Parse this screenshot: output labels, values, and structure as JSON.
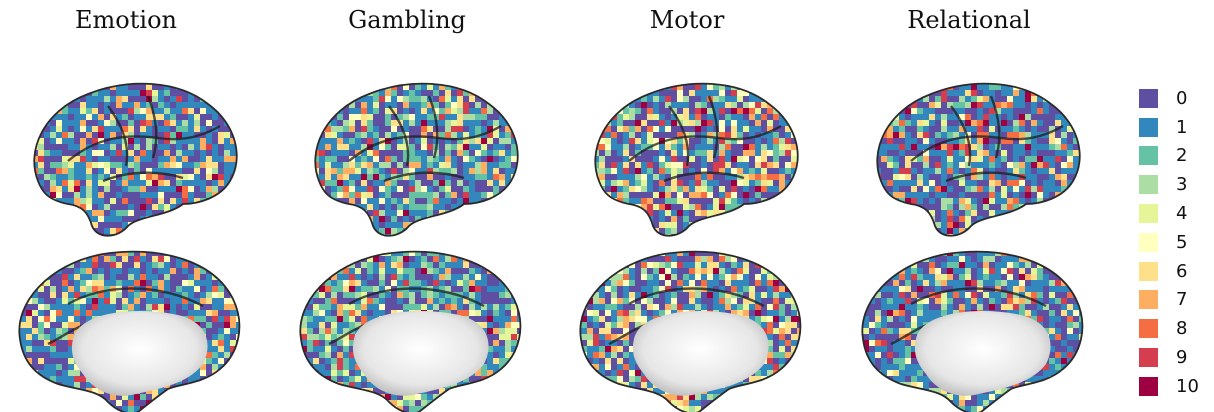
{
  "panels": [
    {
      "title": "Emotion"
    },
    {
      "title": "Gambling"
    },
    {
      "title": "Motor"
    },
    {
      "title": "Relational"
    }
  ],
  "legend": {
    "items": [
      {
        "label": "0",
        "color": "#5E4FA2"
      },
      {
        "label": "1",
        "color": "#3288BD"
      },
      {
        "label": "2",
        "color": "#66C2A5"
      },
      {
        "label": "3",
        "color": "#ABDDA4"
      },
      {
        "label": "4",
        "color": "#E6F598"
      },
      {
        "label": "5",
        "color": "#FFFFBF"
      },
      {
        "label": "6",
        "color": "#FEE08B"
      },
      {
        "label": "7",
        "color": "#FDAE61"
      },
      {
        "label": "8",
        "color": "#F46D43"
      },
      {
        "label": "9",
        "color": "#D53E4F"
      },
      {
        "label": "10",
        "color": "#9E0142"
      }
    ]
  }
}
